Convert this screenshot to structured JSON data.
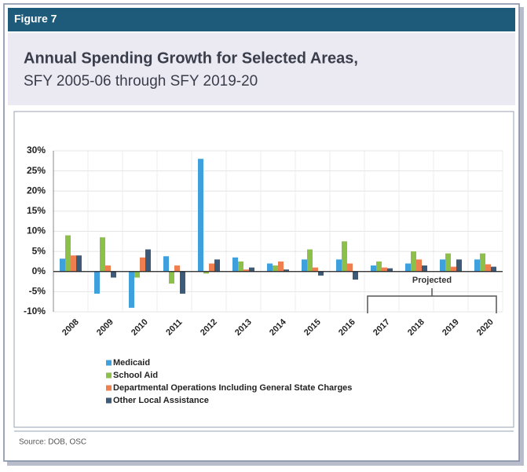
{
  "chart_data": {
    "type": "bar",
    "figure_label": "Figure 7",
    "title": "Annual Spending Growth for Selected Areas,",
    "subtitle": "SFY 2005-06 through SFY 2019-20",
    "source": "Source: DOB, OSC",
    "annotation": "Projected",
    "categories": [
      "2008",
      "2009",
      "2010",
      "2011",
      "2012",
      "2013",
      "2014",
      "2015",
      "2016",
      "2017",
      "2018",
      "2019",
      "2020"
    ],
    "series": [
      {
        "name": "Medicaid",
        "color": "#3fa0de",
        "values": [
          3.2,
          -5.5,
          -9,
          3.8,
          28,
          3.5,
          2,
          3,
          3,
          1.5,
          2,
          3,
          3
        ]
      },
      {
        "name": "School Aid",
        "color": "#8cc04a",
        "values": [
          9,
          8.5,
          -1.5,
          -3,
          -0.5,
          2.5,
          1.5,
          5.5,
          7.5,
          2.5,
          5,
          4.5,
          4.5
        ]
      },
      {
        "name": "Departmental Operations Including General State Charges",
        "color": "#ef7f4f",
        "values": [
          4,
          1.5,
          3.5,
          1.5,
          2,
          0.5,
          2.5,
          1,
          2,
          1,
          3,
          1.2,
          1.8
        ]
      },
      {
        "name": "Other Local Assistance",
        "color": "#3d5a78",
        "values": [
          4,
          -1.5,
          5.5,
          -5.5,
          3,
          1,
          0.5,
          -1,
          -2,
          0.8,
          1.5,
          3,
          1.2
        ]
      }
    ],
    "ylim": [
      -10,
      30
    ],
    "yticks": [
      {
        "value": -10,
        "label": "-10%"
      },
      {
        "value": -5,
        "label": "-5%"
      },
      {
        "value": 0,
        "label": "0%"
      },
      {
        "value": 5,
        "label": "5%"
      },
      {
        "value": 10,
        "label": "10%"
      },
      {
        "value": 15,
        "label": "15%"
      },
      {
        "value": 20,
        "label": "20%"
      },
      {
        "value": 25,
        "label": "25%"
      },
      {
        "value": 30,
        "label": "30%"
      }
    ],
    "grid": true
  }
}
